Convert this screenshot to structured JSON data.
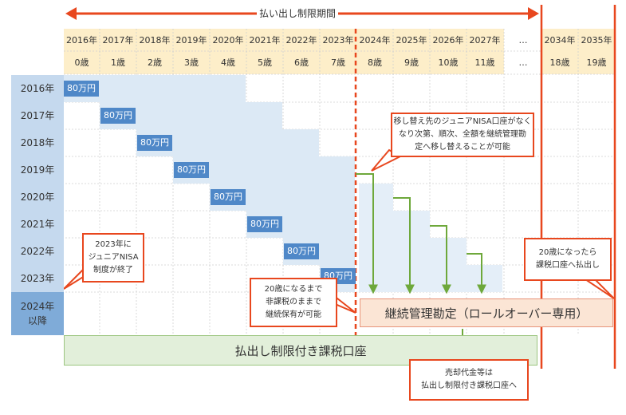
{
  "period_label": "払い出し制限期間",
  "years": [
    "2016年",
    "2017年",
    "2018年",
    "2019年",
    "2020年",
    "2021年",
    "2022年",
    "2023年",
    "2024年",
    "2025年",
    "2026年",
    "2027年",
    "…",
    "2034年",
    "2035年"
  ],
  "ages": [
    "0歳",
    "1歳",
    "2歳",
    "3歳",
    "4歳",
    "5歳",
    "6歳",
    "7歳",
    "8歳",
    "9歳",
    "10歳",
    "11歳",
    "…",
    "18歳",
    "19歳"
  ],
  "row_labels": [
    "2016年",
    "2017年",
    "2018年",
    "2019年",
    "2020年",
    "2021年",
    "2022年",
    "2023年"
  ],
  "last_row_label": [
    "2024年",
    "以降"
  ],
  "amount": "80万円",
  "callouts": {
    "transfer": [
      "移し替え先のジュニアNISA口座がなく",
      "なり次第、順次、全額を継続管理勘",
      "定へ移し替えることが可能"
    ],
    "end": [
      "2023年に",
      "ジュニアNISA",
      "制度が終了"
    ],
    "tax_free": [
      "20歳になるまで",
      "非課税のままで",
      "継続保有が可能"
    ],
    "age20": [
      "20歳になったら",
      "課税口座へ払出し"
    ],
    "sale": [
      "売却代金等は",
      "払出し制限付き課税口座へ"
    ]
  },
  "boxes": {
    "rollover": "継続管理勘定（ロールオーバー専用）",
    "restricted": "払出し制限付き課税口座"
  },
  "colors": {
    "header_bg": "#fdeec9",
    "row_label_bg": "#c5d9ee",
    "block_light": "#dce9f5",
    "amount_bg": "#4f88c8",
    "accent": "#e8471e",
    "green": "#6ea83b",
    "rollover_bg": "#fbe5d5",
    "restricted_bg": "#e2efda"
  }
}
